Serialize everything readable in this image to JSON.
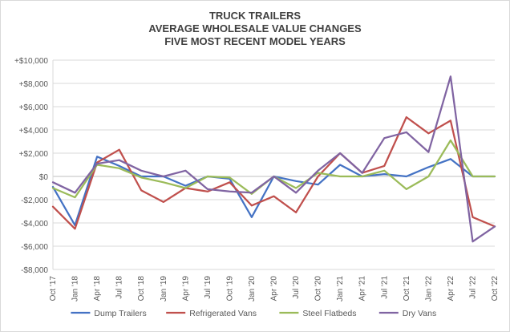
{
  "chart_data": {
    "type": "line",
    "title_lines": [
      "TRUCK TRAILERS",
      "AVERAGE WHOLESALE VALUE CHANGES",
      "FIVE MOST RECENT MODEL YEARS"
    ],
    "categories": [
      "Oct '17",
      "Jan '18",
      "Apr '18",
      "Jul '18",
      "Oct '18",
      "Jan '19",
      "Apr '19",
      "Jul '19",
      "Oct '19",
      "Jan '20",
      "Apr '20",
      "Jul '20",
      "Oct '20",
      "Jan '21",
      "Apr '21",
      "Jul '21",
      "Oct '21",
      "Jan '22",
      "Apr '22",
      "Jul '22",
      "Oct '22"
    ],
    "y_ticks": [
      -8000,
      -6000,
      -4000,
      -2000,
      0,
      2000,
      4000,
      6000,
      8000,
      10000
    ],
    "y_tick_labels": [
      "-$8,000",
      "-$6,000",
      "-$4,000",
      "-$2,000",
      "$0",
      "+$2,000",
      "+$4,000",
      "+$6,000",
      "+$8,000",
      "+$10,000"
    ],
    "ylim": [
      -8000,
      10000
    ],
    "grid": true,
    "legend_position": "bottom",
    "series": [
      {
        "name": "Dump Trailers",
        "color": "#4472c4",
        "values": [
          -900,
          -4200,
          1700,
          900,
          0,
          0,
          -800,
          0,
          -200,
          -3500,
          0,
          -400,
          -700,
          1000,
          0,
          200,
          0,
          800,
          1500,
          0,
          0
        ]
      },
      {
        "name": "Refrigerated Vans",
        "color": "#c0504d",
        "values": [
          -2600,
          -4500,
          1200,
          2300,
          -1200,
          -2200,
          -1000,
          -1300,
          -500,
          -2500,
          -1700,
          -3100,
          0,
          2000,
          300,
          900,
          5100,
          3700,
          4800,
          -3500,
          -4300
        ]
      },
      {
        "name": "Steel Flatbeds",
        "color": "#9bbb59",
        "values": [
          -1000,
          -1800,
          1000,
          700,
          -100,
          -500,
          -1000,
          0,
          -100,
          -1500,
          0,
          -1000,
          300,
          0,
          0,
          500,
          -1100,
          0,
          3100,
          0,
          0
        ]
      },
      {
        "name": "Dry Vans",
        "color": "#8064a2",
        "values": [
          -500,
          -1400,
          1100,
          1400,
          500,
          0,
          500,
          -1100,
          -1300,
          -1400,
          0,
          -1400,
          500,
          2000,
          300,
          3300,
          3800,
          2100,
          8600,
          -5600,
          -4300
        ]
      }
    ]
  }
}
